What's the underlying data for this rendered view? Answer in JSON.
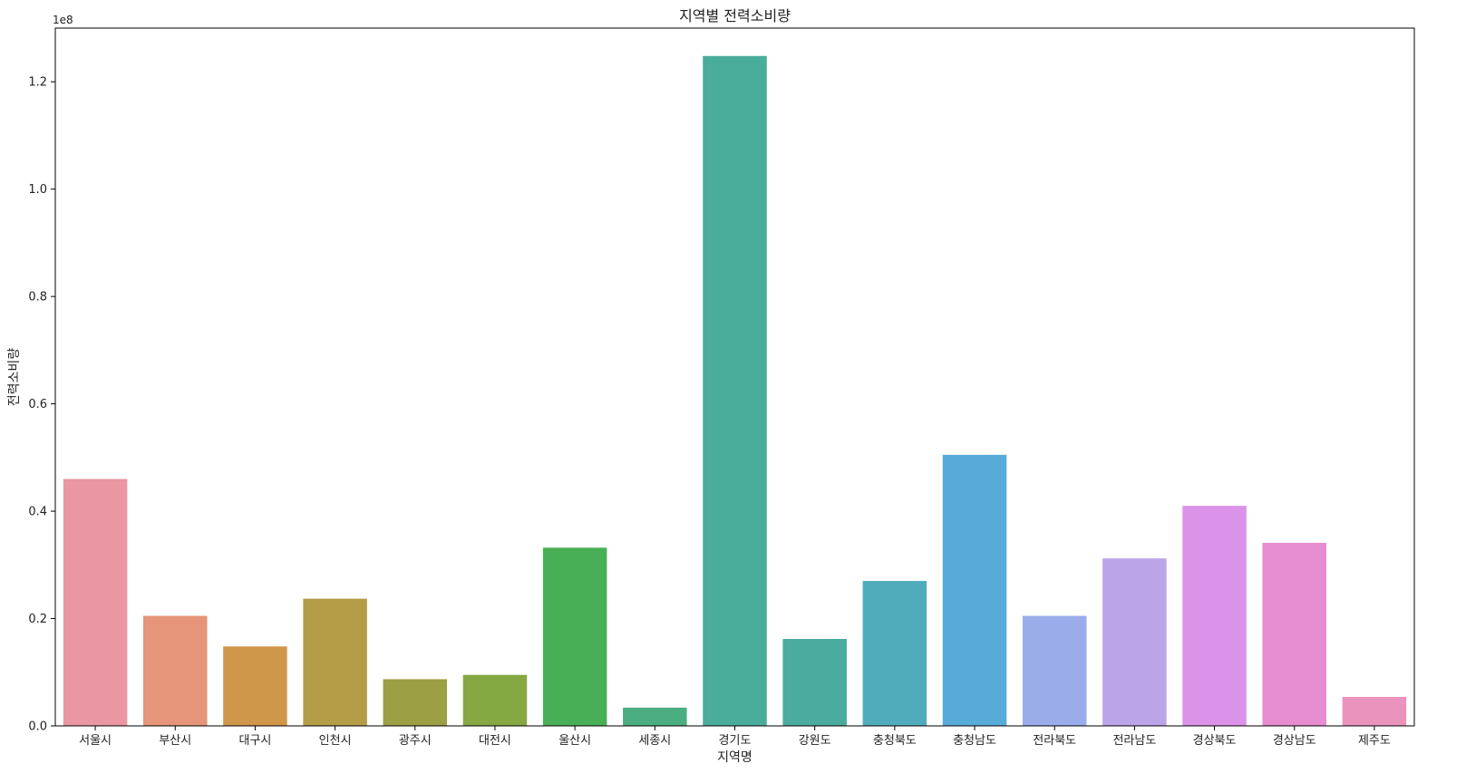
{
  "chart_data": {
    "type": "bar",
    "title": "지역별 전력소비량",
    "xlabel": "지역명",
    "ylabel": "전력소비량",
    "y_offset_label": "1e8",
    "ylim": [
      0,
      130000000
    ],
    "yticks": [
      0,
      20000000,
      40000000,
      60000000,
      80000000,
      100000000,
      120000000
    ],
    "ytick_labels": [
      "0.0",
      "0.2",
      "0.4",
      "0.6",
      "0.8",
      "1.0",
      "1.2"
    ],
    "grid": false,
    "categories": [
      "서울시",
      "부산시",
      "대구시",
      "인천시",
      "광주시",
      "대전시",
      "울산시",
      "세종시",
      "경기도",
      "강원도",
      "충청북도",
      "충청남도",
      "전라북도",
      "전라남도",
      "경상북도",
      "경상남도",
      "제주도"
    ],
    "values": [
      46000000,
      20500000,
      14800000,
      23700000,
      8700000,
      9500000,
      33200000,
      3400000,
      124800000,
      16200000,
      27000000,
      50500000,
      20500000,
      31200000,
      41000000,
      34100000,
      5400000
    ],
    "colors": [
      "#ea96a3",
      "#e59579",
      "#d0964a",
      "#b59d47",
      "#9d9f45",
      "#86a843",
      "#48af57",
      "#4aae80",
      "#4aac9a",
      "#4bab9f",
      "#50acbd",
      "#57abd9",
      "#9aadea",
      "#bca4e8",
      "#db93e9",
      "#e68dd2",
      "#ea93bc"
    ]
  }
}
